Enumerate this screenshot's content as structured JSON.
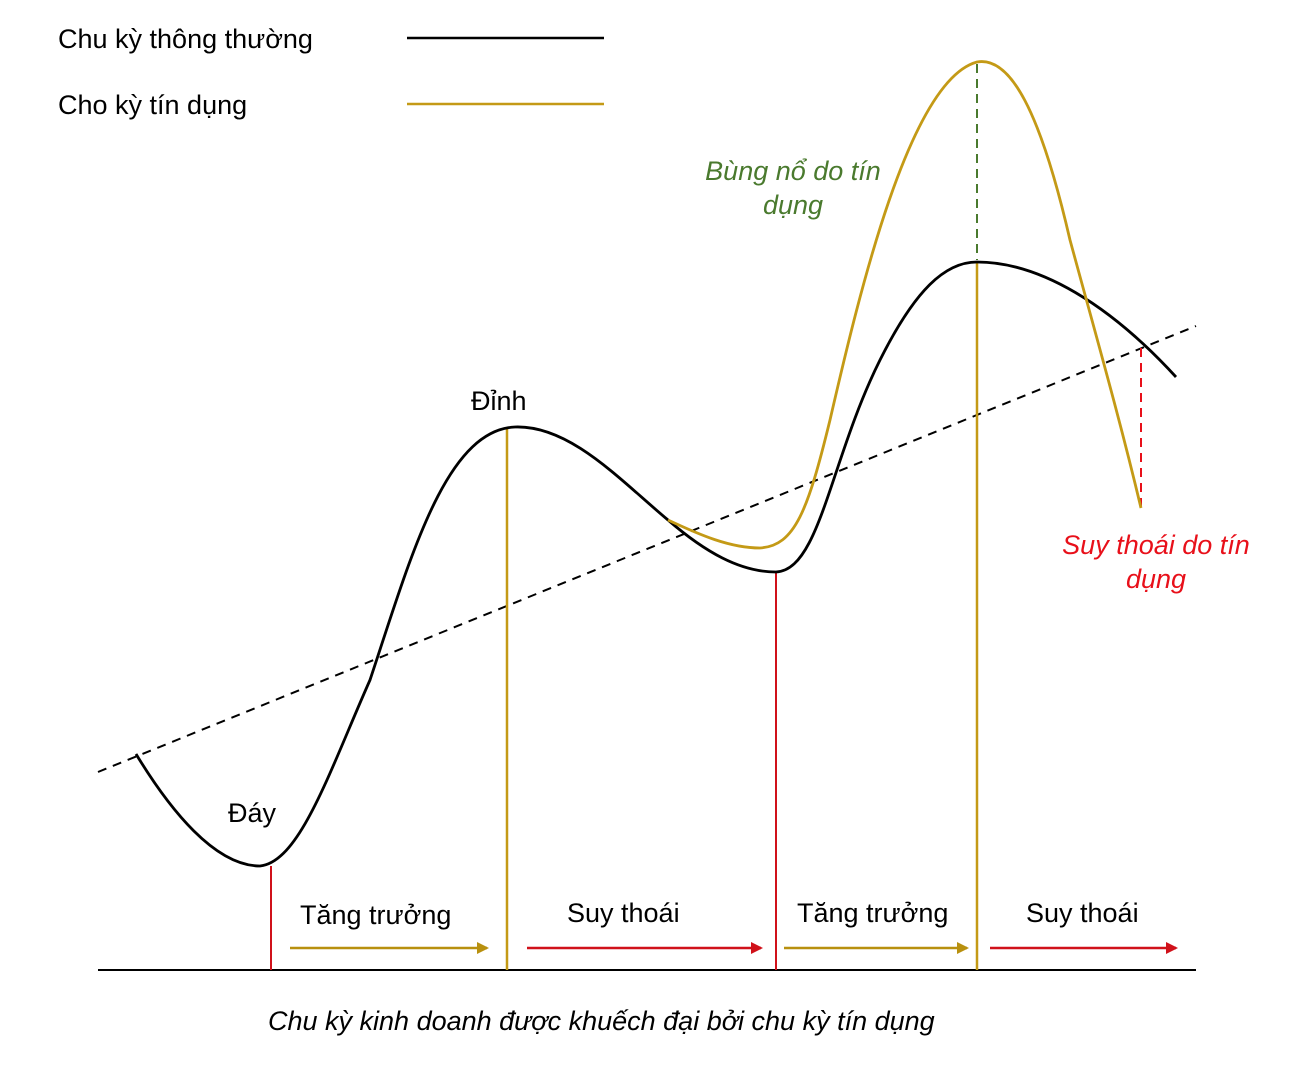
{
  "legend": {
    "items": [
      {
        "label": "Chu kỳ thông thường",
        "color": "#000000"
      },
      {
        "label": "Cho kỳ tín dụng",
        "color": "#c49a16"
      }
    ]
  },
  "labels": {
    "trough": "Đáy",
    "peak": "Đỉnh",
    "credit_boom": "Bùng nổ do tín dụng",
    "credit_recession": "Suy thoái do tín dụng"
  },
  "phases": [
    {
      "label": "Tăng trưởng",
      "color": "#b8900f"
    },
    {
      "label": "Suy thoái",
      "color": "#d0111a"
    },
    {
      "label": "Tăng trưởng",
      "color": "#b8900f"
    },
    {
      "label": "Suy thoái",
      "color": "#d0111a"
    }
  ],
  "caption": "Chu kỳ kinh doanh được khuếch đại bởi chu kỳ tín dụng",
  "colors": {
    "normal_cycle": "#000000",
    "credit_cycle": "#c49a16",
    "phase_growth": "#b8900f",
    "phase_recession": "#d0111a",
    "boom_text": "#4a7a2e",
    "recession_text": "#e8101a"
  }
}
